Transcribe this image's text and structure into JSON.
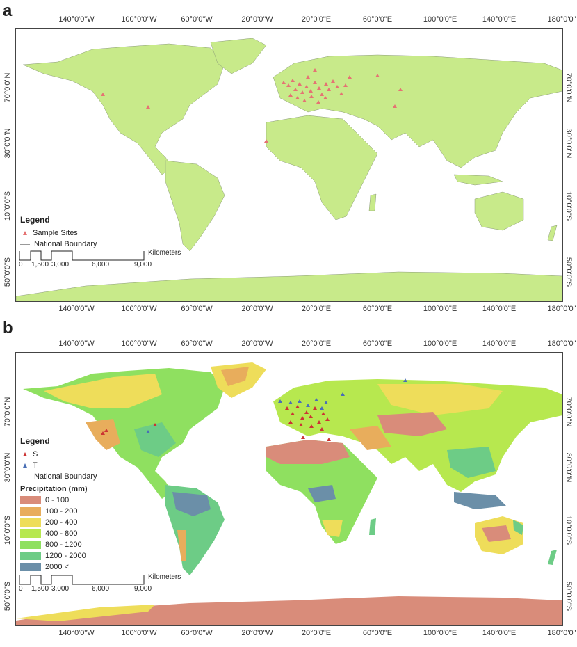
{
  "panels": {
    "a": {
      "letter": "a",
      "top_ticks": [
        "140°0'0\"W",
        "100°0'0\"W",
        "60°0'0\"W",
        "20°0'0\"W",
        "20°0'0\"E",
        "60°0'0\"E",
        "100°0'0\"E",
        "140°0'0\"E",
        "180°0'0\""
      ],
      "bottom_ticks": [
        "140°0'0\"W",
        "100°0'0\"W",
        "60°0'0\"W",
        "20°0'0\"W",
        "20°0'0\"E",
        "60°0'0\"E",
        "100°0'0\"E",
        "140°0'0\"E",
        "180°0'0\""
      ],
      "side_ticks": [
        "70°0'0\"N",
        "30°0'0\"N",
        "10°0'0\"S",
        "50°0'0\"S"
      ],
      "legend": {
        "title": "Legend",
        "sample_sites": "Sample Sites",
        "national_boundary": "National Boundary"
      },
      "scale": {
        "unit": "Kilometers",
        "labels": [
          "0",
          "1,500",
          "3,000",
          "6,000",
          "9,000"
        ]
      },
      "land_color": "#c8ea8a",
      "marker_color": "#e57373"
    },
    "b": {
      "letter": "b",
      "top_ticks": [
        "140°0'0\"W",
        "100°0'0\"W",
        "60°0'0\"W",
        "20°0'0\"W",
        "20°0'0\"E",
        "60°0'0\"E",
        "100°0'0\"E",
        "140°0'0\"E",
        "180°0'0\""
      ],
      "bottom_ticks": [
        "140°0'0\"W",
        "100°0'0\"W",
        "60°0'0\"W",
        "20°0'0\"W",
        "20°0'0\"E",
        "60°0'0\"E",
        "100°0'0\"E",
        "140°0'0\"E",
        "180°0'0\""
      ],
      "side_ticks": [
        "70°0'0\"N",
        "30°0'0\"N",
        "10°0'0\"S",
        "50°0'0\"S"
      ],
      "legend": {
        "title": "Legend",
        "s_label": "S",
        "t_label": "T",
        "national_boundary": "National Boundary",
        "precip_title": "Precipitation (mm)",
        "classes": [
          {
            "label": "0 - 100",
            "color": "#d98c7a"
          },
          {
            "label": "100 - 200",
            "color": "#e8ad5c"
          },
          {
            "label": "200 - 400",
            "color": "#eedd5a"
          },
          {
            "label": "400 - 800",
            "color": "#b7e84f"
          },
          {
            "label": "800 - 1200",
            "color": "#8fe060"
          },
          {
            "label": "1200 - 2000",
            "color": "#6dcc86"
          },
          {
            "label": "2000 <",
            "color": "#6b8fa8"
          }
        ]
      },
      "scale": {
        "unit": "Kilometers",
        "labels": [
          "0",
          "1,500",
          "3,000",
          "6,000",
          "9,000"
        ]
      },
      "s_color": "#cc3333",
      "t_color": "#4a6fb5"
    }
  }
}
